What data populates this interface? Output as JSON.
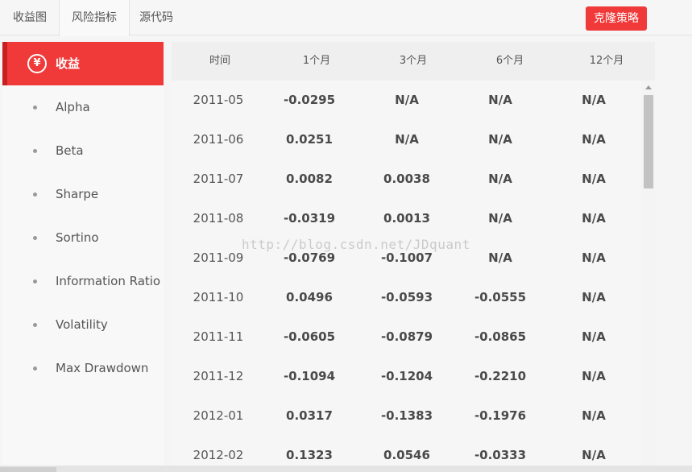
{
  "tabs": [
    {
      "label": "收益图"
    },
    {
      "label": "风险指标"
    },
    {
      "label": "源代码"
    }
  ],
  "clone_button": "克隆策略",
  "sidebar": {
    "items": [
      {
        "label": "收益",
        "icon": "yen-icon",
        "icon_glyph": "¥",
        "active": true
      },
      {
        "label": "Alpha"
      },
      {
        "label": "Beta"
      },
      {
        "label": "Sharpe"
      },
      {
        "label": "Sortino"
      },
      {
        "label": "Information Ratio"
      },
      {
        "label": "Volatility"
      },
      {
        "label": "Max Drawdown"
      }
    ]
  },
  "table": {
    "headers": [
      "时间",
      "1个月",
      "3个月",
      "6个月",
      "12个月"
    ],
    "rows": [
      [
        "2011-05",
        "-0.0295",
        "N/A",
        "N/A",
        "N/A"
      ],
      [
        "2011-06",
        "0.0251",
        "N/A",
        "N/A",
        "N/A"
      ],
      [
        "2011-07",
        "0.0082",
        "0.0038",
        "N/A",
        "N/A"
      ],
      [
        "2011-08",
        "-0.0319",
        "0.0013",
        "N/A",
        "N/A"
      ],
      [
        "2011-09",
        "-0.0769",
        "-0.1007",
        "N/A",
        "N/A"
      ],
      [
        "2011-10",
        "0.0496",
        "-0.0593",
        "-0.0555",
        "N/A"
      ],
      [
        "2011-11",
        "-0.0605",
        "-0.0879",
        "-0.0865",
        "N/A"
      ],
      [
        "2011-12",
        "-0.1094",
        "-0.1204",
        "-0.2210",
        "N/A"
      ],
      [
        "2012-01",
        "0.0317",
        "-0.1383",
        "-0.1976",
        "N/A"
      ],
      [
        "2012-02",
        "0.1323",
        "0.0546",
        "-0.0333",
        "N/A"
      ]
    ]
  },
  "watermark": "http://blog.csdn.net/JDquant",
  "colors": {
    "accent": "#f03a3a",
    "accent_dark": "#c82020"
  }
}
